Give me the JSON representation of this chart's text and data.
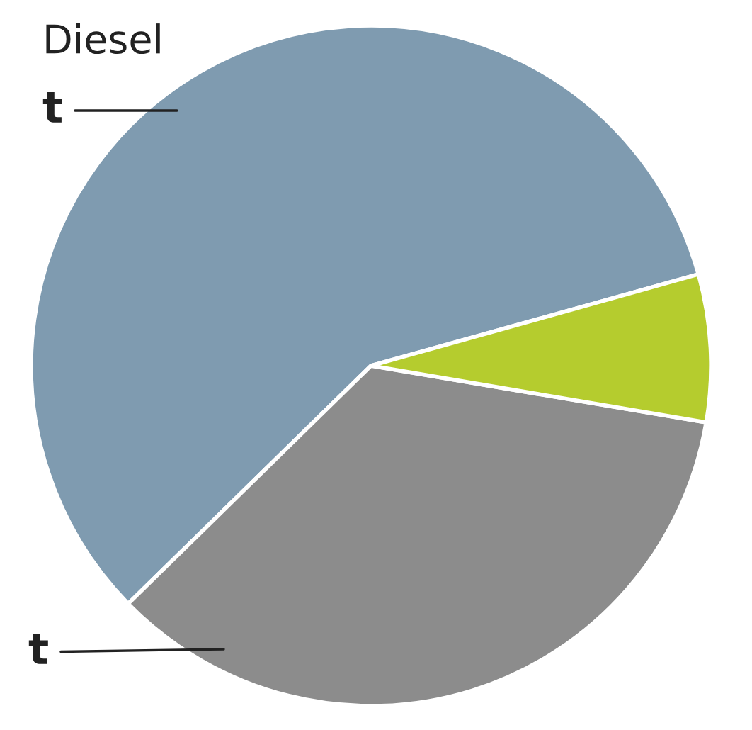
{
  "chart_data": {
    "type": "pie",
    "categories": [
      "Diesel",
      null,
      null
    ],
    "values": [
      58,
      35,
      7
    ],
    "colors": [
      "#7f9bb0",
      "#8c8c8c",
      "#b5cc2e"
    ],
    "annotations": [
      "t",
      "t"
    ]
  }
}
